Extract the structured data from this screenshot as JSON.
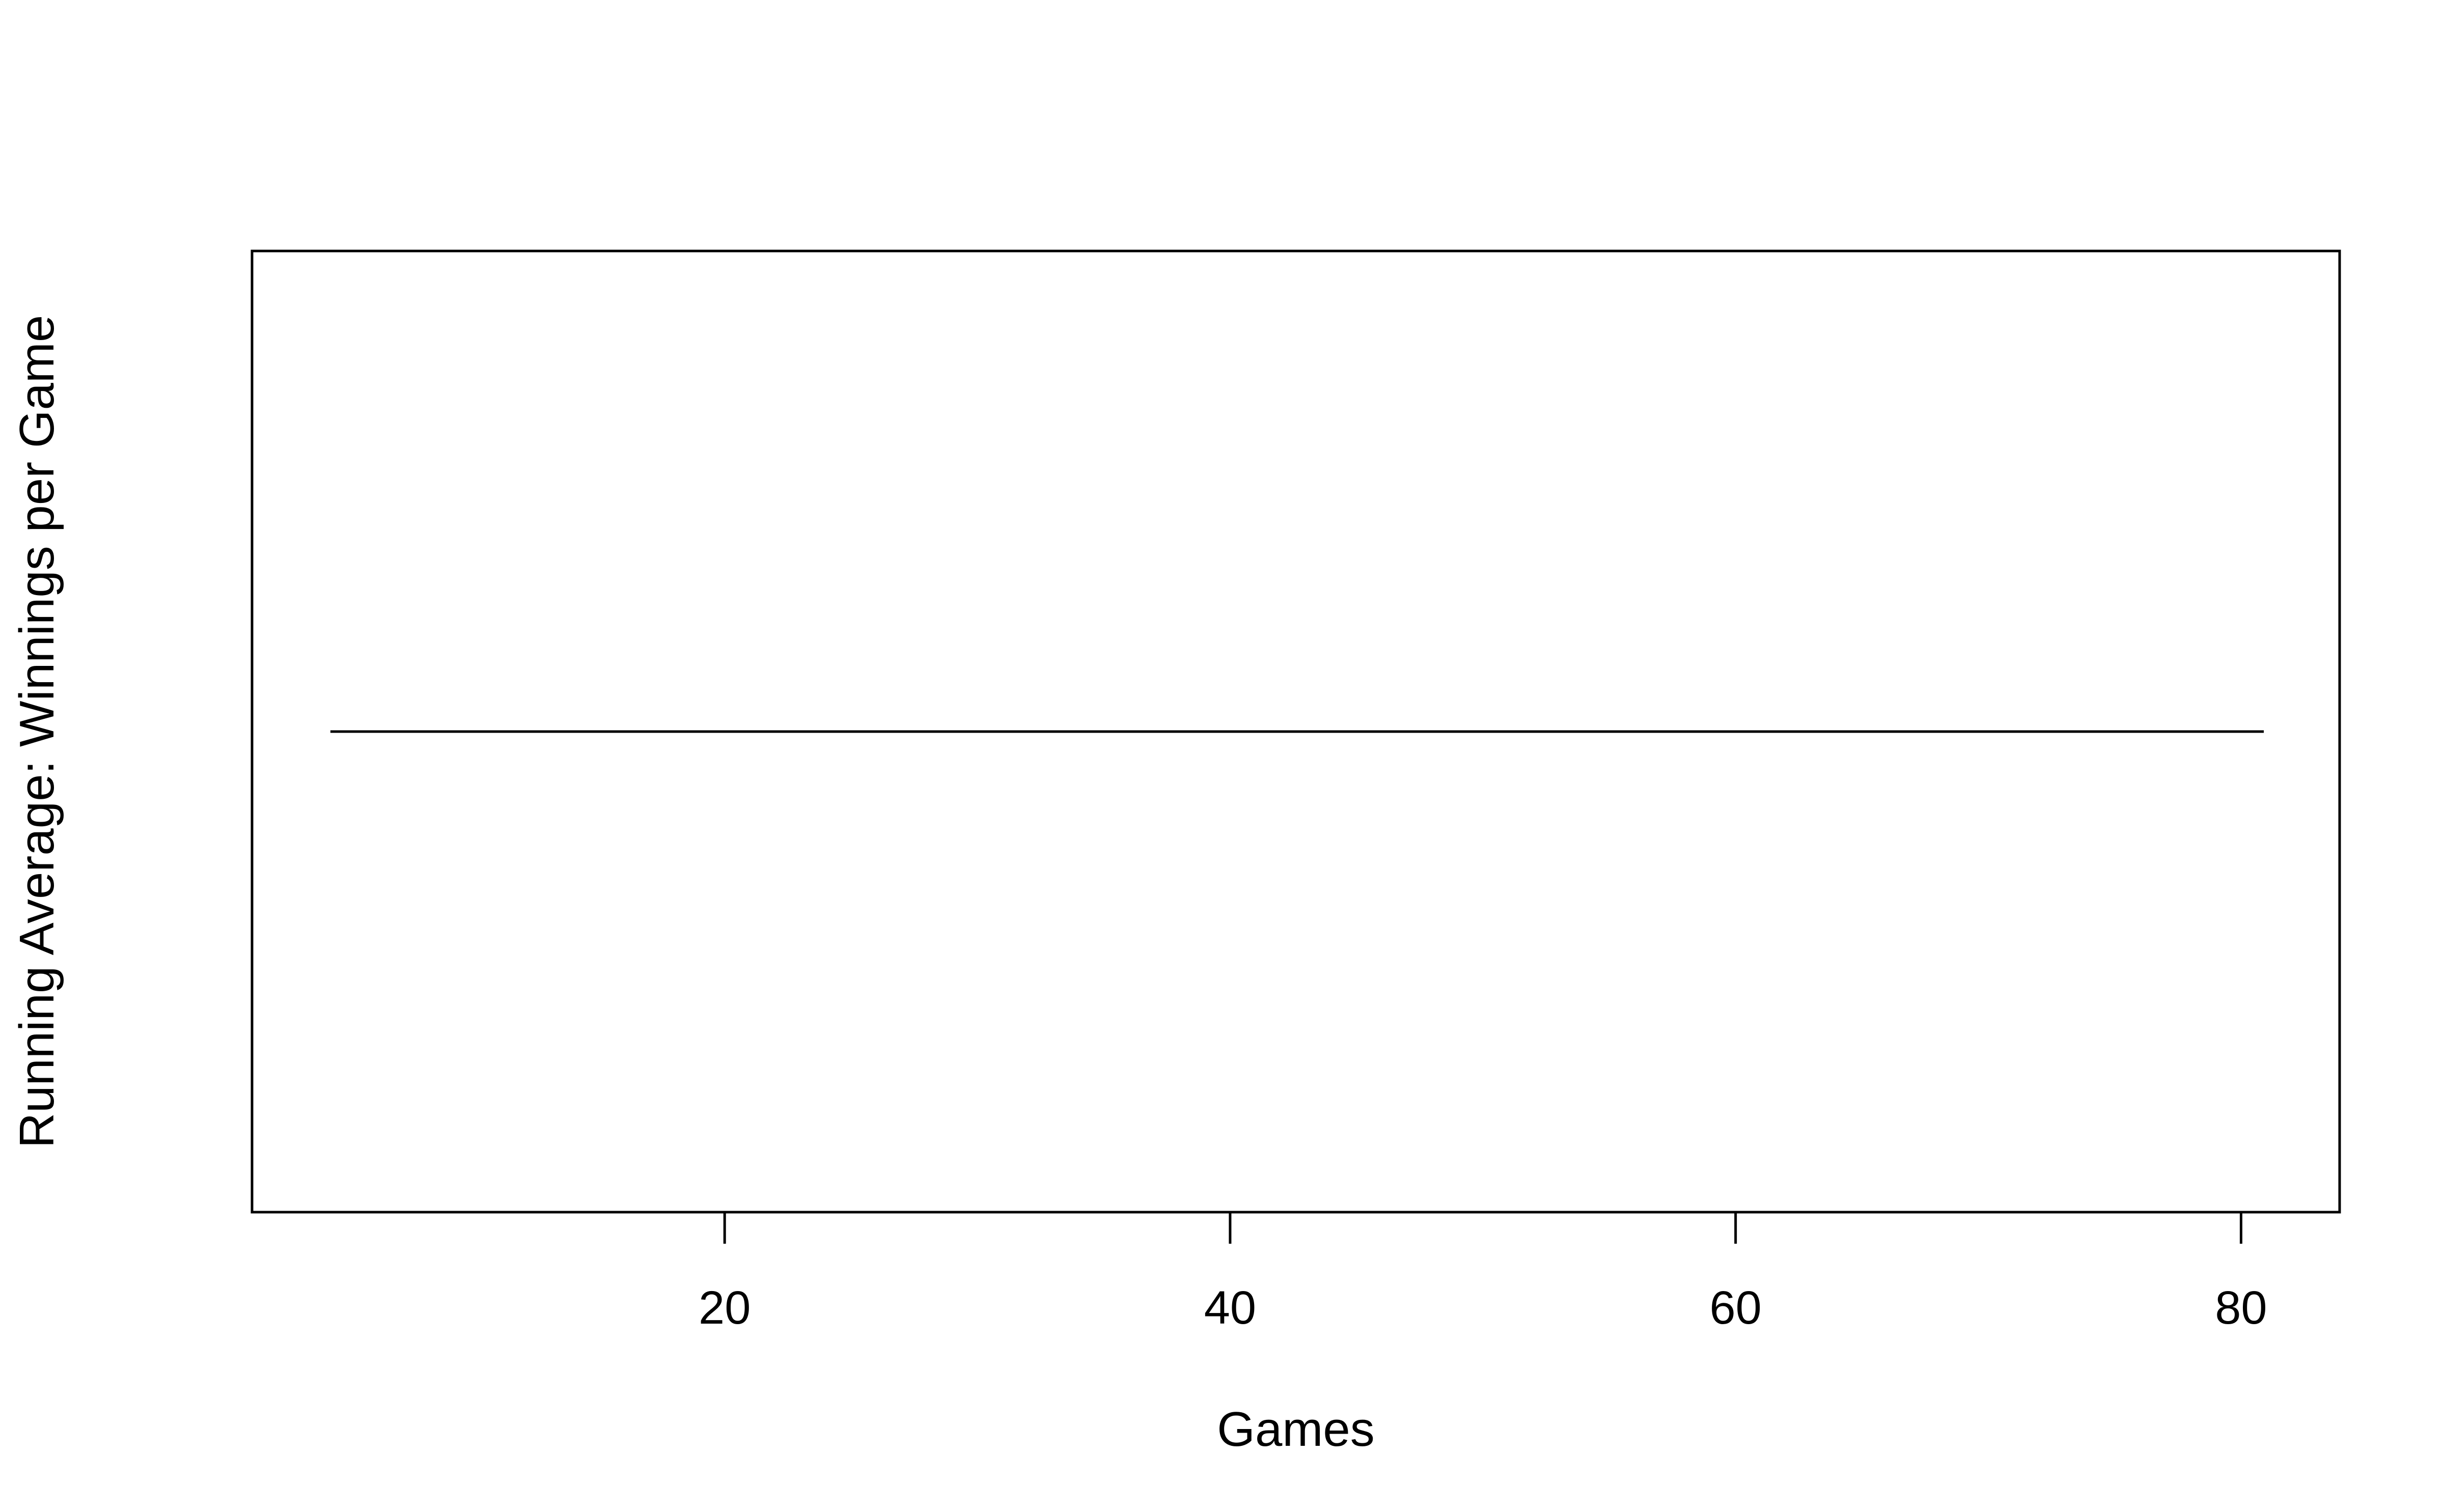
{
  "chart_data": {
    "type": "line",
    "title": "",
    "xlabel": "Games",
    "ylabel": "Running Average: Winnings per Game",
    "xlim": [
      1.3,
      83.9
    ],
    "ylim": [
      -1,
      1
    ],
    "x_ticks": [
      20,
      40,
      60,
      80
    ],
    "x_tick_labels": [
      "20",
      "40",
      "60",
      "80"
    ],
    "y_ticks_shown": false,
    "grid": false,
    "legend": "none",
    "series": [
      {
        "x": [
          4.4,
          80.9
        ],
        "y": [
          0,
          0
        ],
        "color": "#000000"
      }
    ]
  }
}
